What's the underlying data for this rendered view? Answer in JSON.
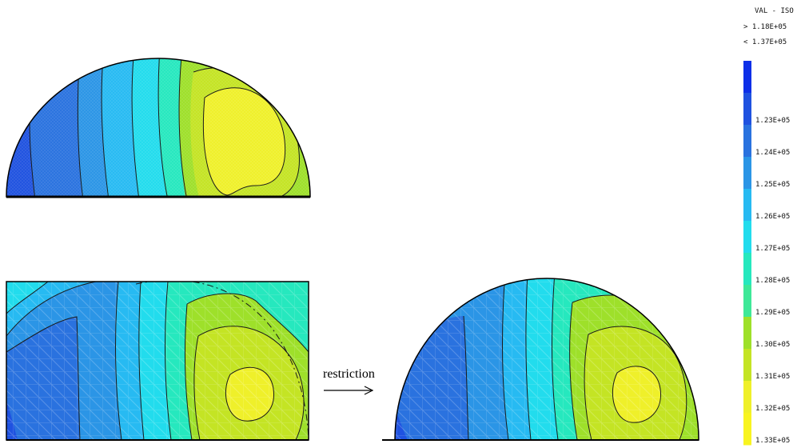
{
  "legend": {
    "title": "VAL - ISO",
    "range_min": "> 1.18E+05",
    "range_max": "< 1.37E+05",
    "levels": [
      {
        "label": "",
        "color": "#0d2fe8"
      },
      {
        "label": "1.23E+05",
        "color": "#1f52e0"
      },
      {
        "label": "1.24E+05",
        "color": "#2a72df"
      },
      {
        "label": "1.25E+05",
        "color": "#2b95e6"
      },
      {
        "label": "1.26E+05",
        "color": "#27baf2"
      },
      {
        "label": "1.27E+05",
        "color": "#22dced"
      },
      {
        "label": "1.28E+05",
        "color": "#26e8be"
      },
      {
        "label": "1.29E+05",
        "color": "#3ee898"
      },
      {
        "label": "1.30E+05",
        "color": "#9ee02a"
      },
      {
        "label": "1.31E+05",
        "color": "#c4e424"
      },
      {
        "label": "1.32E+05",
        "color": "#eff02a"
      },
      {
        "label": "1.33E+05",
        "color": "#f8f420"
      }
    ]
  },
  "arrow_label": "restriction"
}
